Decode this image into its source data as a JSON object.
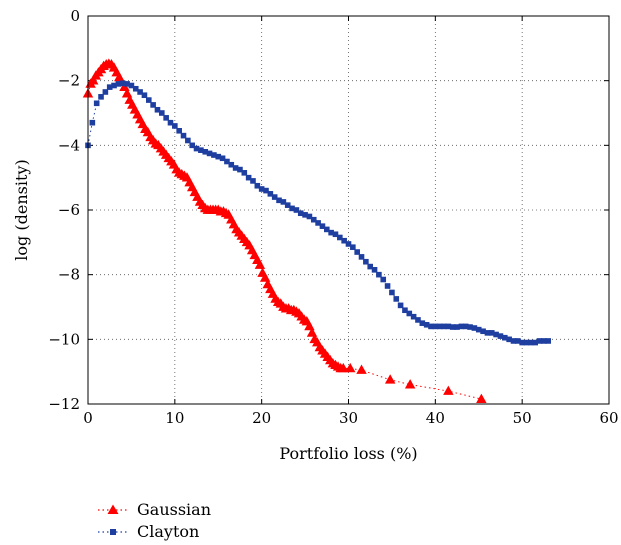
{
  "chart_data": {
    "type": "scatter",
    "title": "",
    "xlabel": "Portfolio loss (%)",
    "ylabel": "log (density)",
    "xlim": [
      0,
      60
    ],
    "ylim": [
      -12,
      0
    ],
    "xticks": [
      0,
      10,
      20,
      30,
      40,
      50,
      60
    ],
    "yticks": [
      0,
      -2,
      -4,
      -6,
      -8,
      -10,
      -12
    ],
    "grid": true,
    "legend_position": "below-left",
    "series": [
      {
        "name": "Gaussian",
        "marker": "triangle",
        "color": "#ff0000",
        "x": [
          0,
          0.3,
          0.6,
          0.9,
          1.2,
          1.5,
          1.8,
          2.1,
          2.4,
          2.7,
          3.0,
          3.3,
          3.6,
          3.9,
          4.2,
          4.5,
          4.8,
          5.1,
          5.4,
          5.7,
          6.0,
          6.3,
          6.6,
          6.9,
          7.2,
          7.5,
          7.8,
          8.1,
          8.4,
          8.7,
          9.0,
          9.3,
          9.6,
          9.9,
          10.2,
          10.5,
          10.8,
          11.1,
          11.4,
          11.7,
          12.0,
          12.3,
          12.6,
          12.9,
          13.2,
          13.5,
          13.8,
          14.1,
          14.4,
          14.7,
          15.0,
          15.3,
          15.6,
          15.9,
          16.2,
          16.5,
          16.8,
          17.1,
          17.4,
          17.7,
          18.0,
          18.3,
          18.6,
          18.9,
          19.2,
          19.5,
          19.8,
          20.1,
          20.4,
          20.7,
          21.0,
          21.3,
          21.6,
          21.9,
          22.2,
          22.5,
          22.8,
          23.1,
          23.4,
          23.7,
          24.0,
          24.3,
          24.6,
          24.9,
          25.2,
          25.5,
          25.8,
          26.1,
          26.4,
          26.7,
          27.0,
          27.3,
          27.6,
          27.9,
          28.2,
          28.5,
          28.8,
          29.1,
          29.4,
          30.2,
          31.5,
          34.8,
          37.1,
          41.5,
          45.3
        ],
        "y": [
          -2.4,
          -2.1,
          -2.0,
          -1.85,
          -1.75,
          -1.65,
          -1.55,
          -1.5,
          -1.48,
          -1.5,
          -1.6,
          -1.75,
          -1.9,
          -2.05,
          -2.2,
          -2.4,
          -2.6,
          -2.75,
          -2.9,
          -3.05,
          -3.2,
          -3.35,
          -3.5,
          -3.6,
          -3.75,
          -3.85,
          -3.95,
          -4.0,
          -4.1,
          -4.2,
          -4.3,
          -4.4,
          -4.5,
          -4.6,
          -4.75,
          -4.85,
          -4.9,
          -4.95,
          -5.0,
          -5.15,
          -5.3,
          -5.45,
          -5.6,
          -5.75,
          -5.85,
          -5.95,
          -6.0,
          -6.0,
          -6.0,
          -6.0,
          -6.0,
          -6.05,
          -6.05,
          -6.1,
          -6.15,
          -6.3,
          -6.45,
          -6.6,
          -6.7,
          -6.8,
          -6.9,
          -7.0,
          -7.1,
          -7.25,
          -7.4,
          -7.55,
          -7.7,
          -7.95,
          -8.1,
          -8.3,
          -8.45,
          -8.6,
          -8.75,
          -8.85,
          -8.9,
          -9.0,
          -9.05,
          -9.05,
          -9.1,
          -9.1,
          -9.15,
          -9.2,
          -9.3,
          -9.4,
          -9.45,
          -9.6,
          -9.8,
          -10.0,
          -10.1,
          -10.25,
          -10.35,
          -10.45,
          -10.55,
          -10.65,
          -10.75,
          -10.8,
          -10.85,
          -10.9,
          -10.9,
          -10.9,
          -10.95,
          -11.25,
          -11.4,
          -11.6,
          -11.85
        ]
      },
      {
        "name": "Clayton",
        "marker": "square",
        "color": "#1f3fa0",
        "x": [
          0,
          0.5,
          1.0,
          1.5,
          2.0,
          2.5,
          3.0,
          3.5,
          4.0,
          4.5,
          5.0,
          5.5,
          6.0,
          6.5,
          7.0,
          7.5,
          8.0,
          8.5,
          9.0,
          9.5,
          10.0,
          10.5,
          11.0,
          11.5,
          12.0,
          12.5,
          13.0,
          13.5,
          14.0,
          14.5,
          15.0,
          15.5,
          16.0,
          16.5,
          17.0,
          17.5,
          18.0,
          18.5,
          19.0,
          19.5,
          20.0,
          20.5,
          21.0,
          21.5,
          22.0,
          22.5,
          23.0,
          23.5,
          24.0,
          24.5,
          25.0,
          25.5,
          26.0,
          26.5,
          27.0,
          27.5,
          28.0,
          28.5,
          29.0,
          29.5,
          30.0,
          30.5,
          31.0,
          31.5,
          32.0,
          32.5,
          33.0,
          33.5,
          34.0,
          34.5,
          35.0,
          35.5,
          36.0,
          36.5,
          37.0,
          37.5,
          38.0,
          38.5,
          39.0,
          39.5,
          40.0,
          40.5,
          41.0,
          41.5,
          42.0,
          42.5,
          43.0,
          43.5,
          44.0,
          44.5,
          45.0,
          45.5,
          46.0,
          46.5,
          47.0,
          47.5,
          48.0,
          48.5,
          49.0,
          49.5,
          50.0,
          50.5,
          51.0,
          51.5,
          52.0,
          52.5,
          53.0
        ],
        "y": [
          -4.0,
          -3.3,
          -2.7,
          -2.5,
          -2.35,
          -2.2,
          -2.15,
          -2.1,
          -2.08,
          -2.1,
          -2.15,
          -2.25,
          -2.35,
          -2.45,
          -2.6,
          -2.75,
          -2.9,
          -3.0,
          -3.15,
          -3.3,
          -3.4,
          -3.55,
          -3.7,
          -3.85,
          -4.0,
          -4.1,
          -4.15,
          -4.2,
          -4.25,
          -4.3,
          -4.35,
          -4.4,
          -4.5,
          -4.6,
          -4.7,
          -4.75,
          -4.85,
          -5.0,
          -5.1,
          -5.25,
          -5.35,
          -5.4,
          -5.5,
          -5.6,
          -5.7,
          -5.75,
          -5.85,
          -5.95,
          -6.0,
          -6.1,
          -6.15,
          -6.2,
          -6.3,
          -6.4,
          -6.5,
          -6.6,
          -6.7,
          -6.75,
          -6.85,
          -6.95,
          -7.05,
          -7.15,
          -7.3,
          -7.45,
          -7.6,
          -7.75,
          -7.85,
          -8.0,
          -8.15,
          -8.35,
          -8.55,
          -8.75,
          -8.95,
          -9.1,
          -9.2,
          -9.3,
          -9.4,
          -9.5,
          -9.55,
          -9.6,
          -9.6,
          -9.6,
          -9.6,
          -9.6,
          -9.62,
          -9.62,
          -9.6,
          -9.6,
          -9.62,
          -9.65,
          -9.7,
          -9.75,
          -9.8,
          -9.8,
          -9.85,
          -9.9,
          -9.95,
          -10.0,
          -10.05,
          -10.05,
          -10.1,
          -10.1,
          -10.1,
          -10.1,
          -10.05,
          -10.05,
          -10.05
        ]
      }
    ]
  }
}
